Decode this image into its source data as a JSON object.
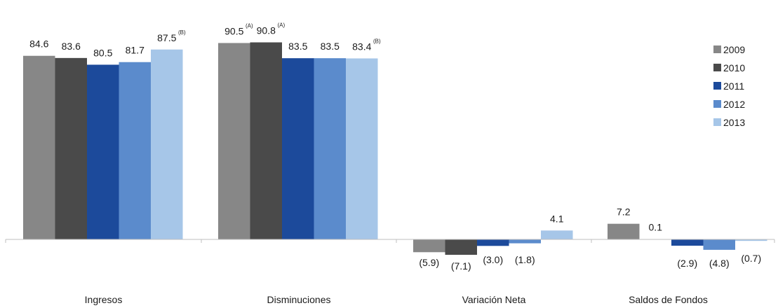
{
  "chart_data": {
    "type": "bar",
    "title": "",
    "xlabel": "",
    "ylabel": "",
    "categories": [
      "Ingresos",
      "Disminuciones",
      "Variación Neta",
      "Saldos de Fondos"
    ],
    "ylim": [
      -8,
      100
    ],
    "grid": false,
    "legend_position": "right",
    "series": [
      {
        "name": "2009",
        "color": "#878787",
        "values": [
          84.6,
          90.5,
          -5.9,
          7.2
        ],
        "labels": [
          "84.6",
          "90.5",
          "(5.9)",
          "7.2"
        ],
        "notes": [
          "",
          "(A)",
          "",
          ""
        ]
      },
      {
        "name": "2010",
        "color": "#4a4a4a",
        "values": [
          83.6,
          90.8,
          -7.1,
          0.1
        ],
        "labels": [
          "83.6",
          "90.8",
          "(7.1)",
          "0.1"
        ],
        "notes": [
          "",
          "(A)",
          "",
          ""
        ]
      },
      {
        "name": "2011",
        "color": "#1c4a9b",
        "values": [
          80.5,
          83.5,
          -3.0,
          -2.9
        ],
        "labels": [
          "80.5",
          "83.5",
          "(3.0)",
          "(2.9)"
        ],
        "notes": [
          "",
          "",
          "",
          ""
        ]
      },
      {
        "name": "2012",
        "color": "#5b8bcc",
        "values": [
          81.7,
          83.5,
          -1.8,
          -4.8
        ],
        "labels": [
          "81.7",
          "83.5",
          "(1.8)",
          "(4.8)"
        ],
        "notes": [
          "",
          "",
          "",
          ""
        ]
      },
      {
        "name": "2013",
        "color": "#a6c6e8",
        "values": [
          87.5,
          83.4,
          4.1,
          -0.7
        ],
        "labels": [
          "87.5",
          "83.4",
          "4.1",
          "(0.7)"
        ],
        "notes": [
          "(B)",
          "(B)",
          "",
          ""
        ]
      }
    ]
  }
}
